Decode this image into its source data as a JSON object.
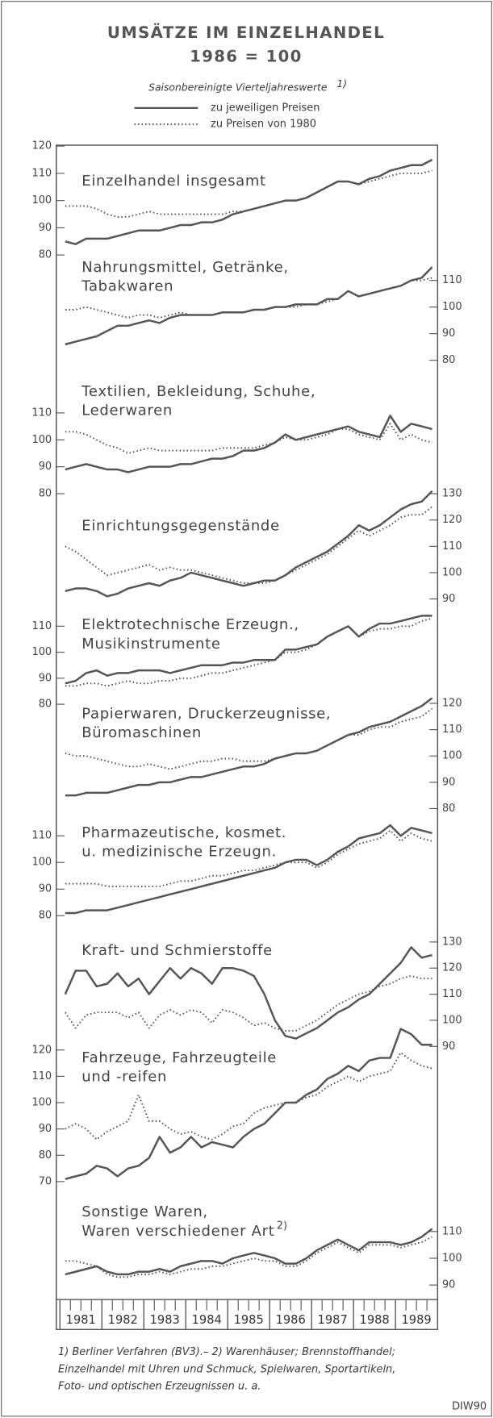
{
  "header": {
    "title": "UMSÄTZE IM EINZELHANDEL",
    "title_line2": "1986 = 100",
    "subtitle": "Saisonbereinigte Vierteljahreswerte",
    "subtitle_note": "1)",
    "legend": [
      {
        "label": "zu jeweiligen Preisen",
        "style": "solid",
        "color": "#555555"
      },
      {
        "label": "zu Preisen von 1980",
        "style": "dotted",
        "color": "#555555"
      }
    ]
  },
  "x_axis": {
    "categories": [
      "1981",
      null,
      null,
      null,
      "1982",
      null,
      null,
      null,
      "1983",
      null,
      null,
      null,
      "1984",
      null,
      null,
      null,
      "1985",
      null,
      null,
      null,
      "1986",
      null,
      null,
      null,
      "1987",
      null,
      null,
      null,
      "1988",
      null,
      null,
      null,
      "1989",
      null,
      null,
      null
    ]
  },
  "chart_data": [
    {
      "type": "line",
      "title": [
        "Einzelhandel insgesamt"
      ],
      "ylim": [
        80,
        120
      ],
      "yticks": [
        80,
        90,
        100,
        110,
        120
      ],
      "tick_side": "left",
      "series": [
        {
          "color": "#555555",
          "style": "solid",
          "values": [
            85,
            84,
            86,
            86,
            86,
            87,
            88,
            89,
            89,
            89,
            90,
            91,
            91,
            92,
            92,
            93,
            95,
            96,
            97,
            98,
            99,
            100,
            100,
            101,
            103,
            105,
            107,
            107,
            106,
            108,
            109,
            111,
            112,
            113,
            113,
            115
          ]
        },
        {
          "color": "#555555",
          "style": "dotted",
          "values": [
            98,
            98,
            98,
            97,
            95,
            94,
            94,
            95,
            96,
            95,
            95,
            95,
            95,
            95,
            95,
            95,
            96,
            96,
            97,
            98,
            99,
            100,
            100,
            101,
            103,
            105,
            107,
            107,
            106,
            107,
            108,
            109,
            110,
            110,
            110,
            111
          ]
        }
      ]
    },
    {
      "type": "line",
      "title": [
        "Nahrungsmittel, Getränke,",
        "Tabakwaren"
      ],
      "ylim": [
        80,
        110
      ],
      "yticks": [
        80,
        90,
        100,
        110
      ],
      "tick_side": "right",
      "series": [
        {
          "color": "#555555",
          "style": "solid",
          "values": [
            86,
            87,
            88,
            89,
            91,
            93,
            93,
            94,
            95,
            94,
            96,
            97,
            97,
            97,
            97,
            98,
            98,
            98,
            99,
            99,
            100,
            100,
            101,
            101,
            101,
            103,
            103,
            106,
            104,
            105,
            106,
            107,
            108,
            110,
            111,
            115
          ]
        },
        {
          "color": "#555555",
          "style": "dotted",
          "values": [
            99,
            99,
            100,
            99,
            98,
            97,
            96,
            97,
            97,
            96,
            97,
            98,
            97,
            97,
            97,
            98,
            98,
            98,
            99,
            99,
            100,
            100,
            100,
            101,
            101,
            102,
            103,
            106,
            104,
            105,
            106,
            107,
            108,
            110,
            110,
            111
          ]
        }
      ]
    },
    {
      "type": "line",
      "title": [
        "Textilien, Bekleidung, Schuhe,",
        "Lederwaren"
      ],
      "ylim": [
        80,
        110
      ],
      "yticks": [
        80,
        90,
        100,
        110
      ],
      "tick_side": "left",
      "series": [
        {
          "color": "#555555",
          "style": "solid",
          "values": [
            89,
            90,
            91,
            90,
            89,
            89,
            88,
            89,
            90,
            90,
            90,
            91,
            91,
            92,
            93,
            93,
            94,
            96,
            96,
            97,
            99,
            102,
            100,
            101,
            102,
            103,
            104,
            105,
            103,
            102,
            101,
            109,
            103,
            106,
            105,
            104
          ]
        },
        {
          "color": "#555555",
          "style": "dotted",
          "values": [
            103,
            103,
            102,
            100,
            98,
            97,
            95,
            96,
            97,
            96,
            96,
            96,
            96,
            96,
            96,
            97,
            97,
            97,
            97,
            98,
            99,
            101,
            100,
            100,
            101,
            102,
            104,
            104,
            102,
            101,
            100,
            106,
            100,
            102,
            100,
            99
          ]
        }
      ]
    },
    {
      "type": "line",
      "title": [
        "Einrichtungsgegenstände"
      ],
      "ylim": [
        90,
        130
      ],
      "yticks": [
        90,
        100,
        110,
        120,
        130
      ],
      "tick_side": "right",
      "series": [
        {
          "color": "#555555",
          "style": "solid",
          "values": [
            93,
            94,
            94,
            93,
            91,
            92,
            94,
            95,
            96,
            95,
            97,
            98,
            100,
            99,
            98,
            97,
            96,
            95,
            96,
            97,
            97,
            99,
            102,
            104,
            106,
            108,
            111,
            114,
            118,
            116,
            118,
            121,
            124,
            126,
            127,
            131
          ]
        },
        {
          "color": "#555555",
          "style": "dotted",
          "values": [
            110,
            108,
            105,
            102,
            99,
            100,
            101,
            102,
            103,
            101,
            102,
            101,
            101,
            100,
            99,
            98,
            97,
            96,
            96,
            96,
            97,
            99,
            101,
            103,
            105,
            107,
            110,
            113,
            116,
            114,
            116,
            118,
            121,
            122,
            122,
            125
          ]
        }
      ]
    },
    {
      "type": "line",
      "title": [
        "Elektrotechnische Erzeugn.,",
        "Musikinstrumente"
      ],
      "ylim": [
        80,
        110
      ],
      "yticks": [
        80,
        90,
        100,
        110
      ],
      "tick_side": "left",
      "series": [
        {
          "color": "#555555",
          "style": "solid",
          "values": [
            88,
            89,
            92,
            93,
            91,
            92,
            92,
            93,
            93,
            93,
            92,
            93,
            94,
            95,
            95,
            95,
            96,
            96,
            97,
            97,
            97,
            101,
            101,
            102,
            103,
            106,
            108,
            110,
            106,
            109,
            111,
            111,
            112,
            113,
            114,
            114
          ]
        },
        {
          "color": "#555555",
          "style": "dotted",
          "values": [
            87,
            87,
            88,
            88,
            87,
            88,
            89,
            88,
            88,
            89,
            89,
            90,
            90,
            91,
            92,
            92,
            93,
            94,
            95,
            96,
            97,
            100,
            100,
            101,
            103,
            106,
            108,
            110,
            106,
            108,
            109,
            109,
            110,
            110,
            112,
            113
          ]
        }
      ]
    },
    {
      "type": "line",
      "title": [
        "Papierwaren, Druckerzeugnisse,",
        "Büromaschinen"
      ],
      "ylim": [
        80,
        120
      ],
      "yticks": [
        80,
        90,
        100,
        110,
        120
      ],
      "tick_side": "right",
      "series": [
        {
          "color": "#555555",
          "style": "solid",
          "values": [
            85,
            85,
            86,
            86,
            86,
            87,
            88,
            89,
            89,
            90,
            90,
            91,
            92,
            92,
            93,
            94,
            95,
            96,
            96,
            97,
            99,
            100,
            101,
            101,
            102,
            104,
            106,
            108,
            109,
            111,
            112,
            113,
            115,
            117,
            119,
            122
          ]
        },
        {
          "color": "#555555",
          "style": "dotted",
          "values": [
            101,
            100,
            100,
            99,
            98,
            97,
            96,
            96,
            97,
            96,
            95,
            96,
            97,
            98,
            98,
            99,
            99,
            98,
            98,
            98,
            99,
            100,
            101,
            101,
            102,
            104,
            106,
            108,
            108,
            110,
            111,
            111,
            113,
            114,
            115,
            118
          ]
        }
      ]
    },
    {
      "type": "line",
      "title": [
        "Pharmazeutische, kosmet.",
        "u. medizinische Erzeugn."
      ],
      "ylim": [
        80,
        110
      ],
      "yticks": [
        80,
        90,
        100,
        110
      ],
      "tick_side": "left",
      "series": [
        {
          "color": "#555555",
          "style": "solid",
          "values": [
            81,
            81,
            82,
            82,
            82,
            83,
            84,
            85,
            86,
            87,
            88,
            89,
            90,
            91,
            92,
            93,
            94,
            95,
            96,
            97,
            98,
            100,
            101,
            101,
            99,
            101,
            104,
            106,
            109,
            110,
            111,
            114,
            110,
            113,
            112,
            111
          ]
        },
        {
          "color": "#555555",
          "style": "dotted",
          "values": [
            92,
            92,
            92,
            92,
            91,
            91,
            91,
            91,
            91,
            91,
            92,
            93,
            93,
            94,
            95,
            95,
            96,
            97,
            97,
            98,
            99,
            100,
            100,
            100,
            98,
            100,
            103,
            105,
            107,
            108,
            109,
            112,
            108,
            111,
            109,
            108
          ]
        }
      ]
    },
    {
      "type": "line",
      "title": [
        "Kraft- und Schmierstoffe"
      ],
      "ylim": [
        90,
        130
      ],
      "yticks": [
        90,
        100,
        110,
        120,
        130
      ],
      "tick_side": "right",
      "series": [
        {
          "color": "#555555",
          "style": "solid",
          "values": [
            110,
            119,
            119,
            113,
            114,
            118,
            113,
            116,
            110,
            115,
            120,
            116,
            120,
            118,
            114,
            120,
            120,
            119,
            117,
            110,
            100,
            94,
            93,
            95,
            97,
            100,
            103,
            105,
            108,
            110,
            114,
            118,
            122,
            128,
            124,
            125
          ]
        },
        {
          "color": "#555555",
          "style": "dotted",
          "values": [
            103,
            97,
            102,
            103,
            103,
            103,
            101,
            103,
            97,
            102,
            104,
            102,
            104,
            103,
            99,
            104,
            103,
            101,
            98,
            99,
            97,
            96,
            96,
            98,
            100,
            103,
            106,
            108,
            110,
            111,
            113,
            114,
            116,
            117,
            116,
            116
          ]
        }
      ]
    },
    {
      "type": "line",
      "title": [
        "Fahrzeuge, Fahrzeugteile",
        "und -reifen"
      ],
      "ylim": [
        70,
        120
      ],
      "yticks": [
        70,
        80,
        90,
        100,
        110,
        120
      ],
      "tick_side": "left",
      "series": [
        {
          "color": "#555555",
          "style": "solid",
          "values": [
            71,
            72,
            73,
            76,
            75,
            72,
            75,
            76,
            79,
            87,
            81,
            83,
            87,
            83,
            85,
            84,
            83,
            87,
            90,
            92,
            96,
            100,
            100,
            103,
            105,
            109,
            111,
            114,
            112,
            116,
            117,
            117,
            128,
            126,
            122,
            122
          ]
        },
        {
          "color": "#555555",
          "style": "dotted",
          "values": [
            90,
            92,
            90,
            86,
            89,
            91,
            93,
            103,
            93,
            93,
            90,
            88,
            89,
            87,
            86,
            88,
            91,
            92,
            96,
            98,
            99,
            100,
            100,
            102,
            103,
            106,
            108,
            110,
            108,
            110,
            111,
            112,
            119,
            116,
            114,
            113
          ]
        }
      ]
    },
    {
      "type": "line",
      "title": [
        "Sonstige Waren,",
        "Waren verschiedener Art"
      ],
      "title_note": "2)",
      "ylim": [
        90,
        110
      ],
      "yticks": [
        90,
        100,
        110
      ],
      "tick_side": "right",
      "series": [
        {
          "color": "#555555",
          "style": "solid",
          "values": [
            94,
            95,
            96,
            97,
            95,
            94,
            94,
            95,
            95,
            96,
            95,
            97,
            98,
            99,
            99,
            98,
            100,
            101,
            102,
            101,
            100,
            98,
            98,
            100,
            103,
            105,
            107,
            105,
            103,
            106,
            106,
            106,
            105,
            106,
            108,
            111
          ]
        },
        {
          "color": "#555555",
          "style": "dotted",
          "values": [
            99,
            99,
            98,
            97,
            94,
            93,
            93,
            94,
            94,
            95,
            94,
            95,
            96,
            96,
            97,
            97,
            98,
            99,
            100,
            99,
            99,
            97,
            97,
            99,
            102,
            104,
            106,
            104,
            102,
            105,
            105,
            105,
            104,
            105,
            106,
            108
          ]
        }
      ]
    }
  ],
  "footnote": [
    "1) Berliner Verfahren (BV3).– 2) Warenhäuser; Brennstoffhandel;",
    "Einzelhandel mit Uhren und Schmuck, Spielwaren, Sportartikeln,",
    "Foto- und optischen Erzeugnissen u. a."
  ],
  "source": "DIW90"
}
